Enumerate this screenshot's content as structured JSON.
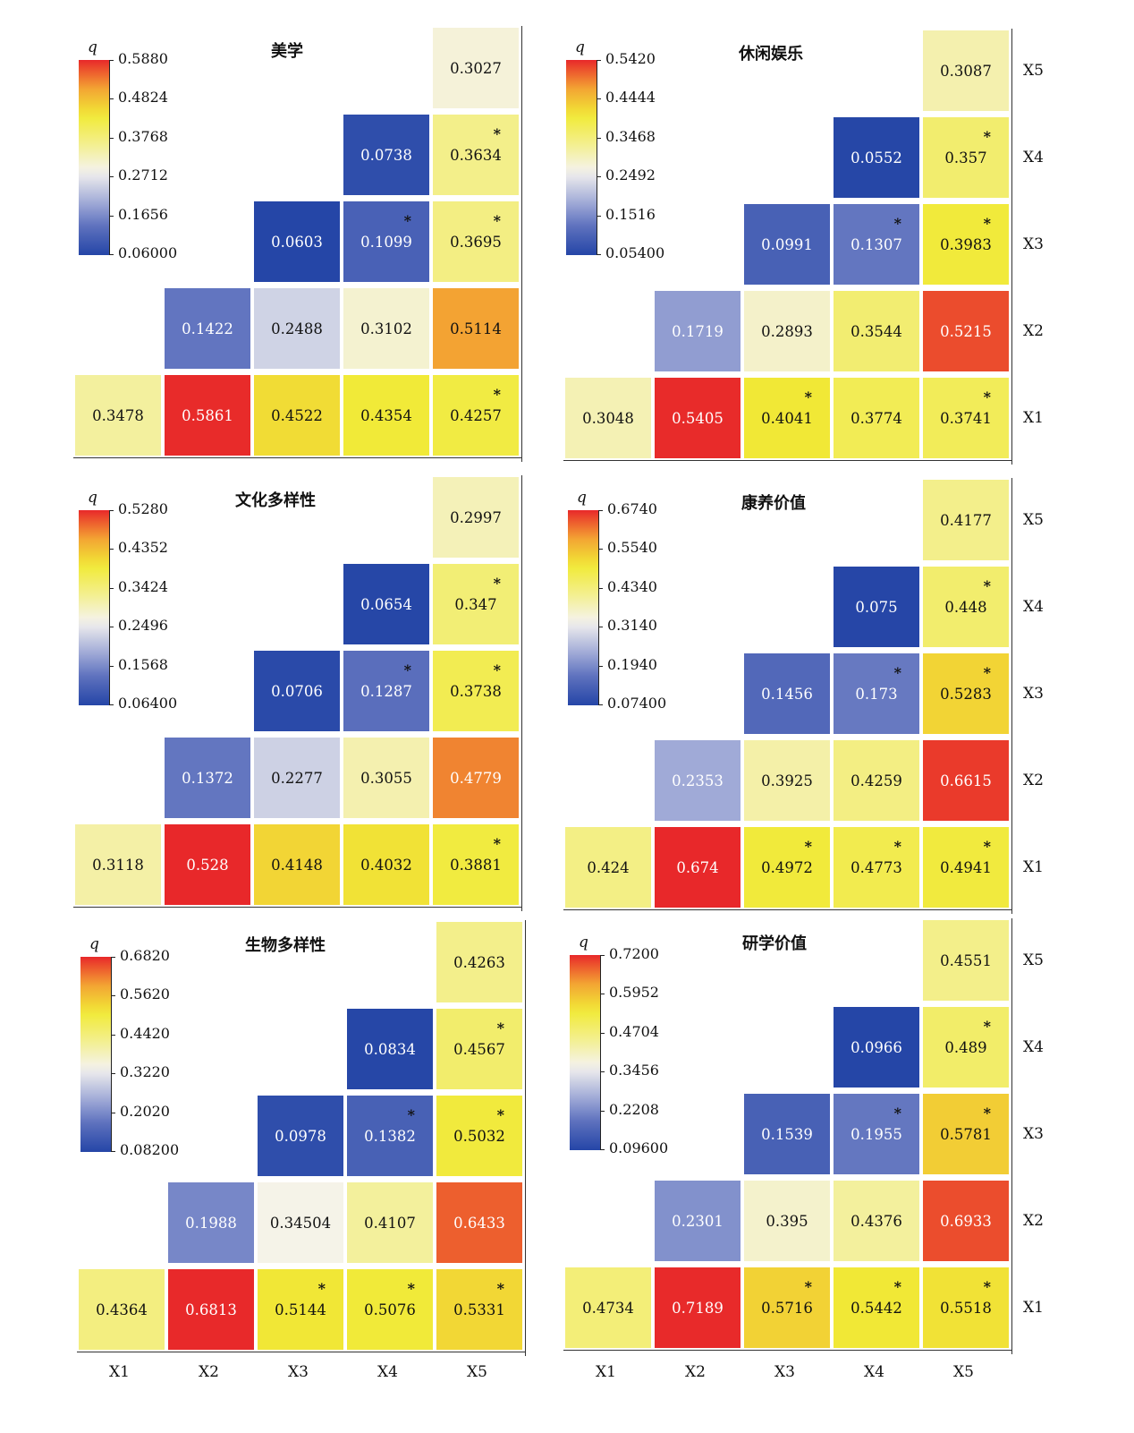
{
  "colorbar_label": "q",
  "axis_labels": [
    "X1",
    "X2",
    "X3",
    "X4",
    "X5"
  ],
  "colormap": [
    "#2546a7",
    "#5b6fbd",
    "#a9b2da",
    "#f5f3ef",
    "#f3ef8c",
    "#f1ea36",
    "#f3a233",
    "#e8282a"
  ],
  "chart_data": [
    {
      "type": "heatmap",
      "title": "美学",
      "range": [
        0.06,
        0.588
      ],
      "colorbar_ticks": [
        "0.5880",
        "0.4824",
        "0.3768",
        "0.2712",
        "0.1656",
        "0.06000"
      ],
      "cells": [
        {
          "row": "X1",
          "col": "X1",
          "value": 0.3478,
          "label": "0.3478",
          "star": false
        },
        {
          "row": "X1",
          "col": "X2",
          "value": 0.5861,
          "label": "0.5861",
          "star": false
        },
        {
          "row": "X1",
          "col": "X3",
          "value": 0.4522,
          "label": "0.4522",
          "star": false
        },
        {
          "row": "X1",
          "col": "X4",
          "value": 0.4354,
          "label": "0.4354",
          "star": false
        },
        {
          "row": "X1",
          "col": "X5",
          "value": 0.4257,
          "label": "0.4257",
          "star": true
        },
        {
          "row": "X2",
          "col": "X2",
          "value": 0.1422,
          "label": "0.1422",
          "star": false
        },
        {
          "row": "X2",
          "col": "X3",
          "value": 0.2488,
          "label": "0.2488",
          "star": false
        },
        {
          "row": "X2",
          "col": "X4",
          "value": 0.3102,
          "label": "0.3102",
          "star": false
        },
        {
          "row": "X2",
          "col": "X5",
          "value": 0.5114,
          "label": "0.5114",
          "star": false
        },
        {
          "row": "X3",
          "col": "X3",
          "value": 0.0603,
          "label": "0.0603",
          "star": false
        },
        {
          "row": "X3",
          "col": "X4",
          "value": 0.1099,
          "label": "0.1099",
          "star": true
        },
        {
          "row": "X3",
          "col": "X5",
          "value": 0.3695,
          "label": "0.3695",
          "star": true
        },
        {
          "row": "X4",
          "col": "X4",
          "value": 0.0738,
          "label": "0.0738",
          "star": false
        },
        {
          "row": "X4",
          "col": "X5",
          "value": 0.3634,
          "label": "0.3634",
          "star": true
        },
        {
          "row": "X5",
          "col": "X5",
          "value": 0.3027,
          "label": "0.3027",
          "star": false
        }
      ]
    },
    {
      "type": "heatmap",
      "title": "休闲娱乐",
      "range": [
        0.054,
        0.542
      ],
      "colorbar_ticks": [
        "0.5420",
        "0.4444",
        "0.3468",
        "0.2492",
        "0.1516",
        "0.05400"
      ],
      "cells": [
        {
          "row": "X1",
          "col": "X1",
          "value": 0.3048,
          "label": "0.3048",
          "star": false
        },
        {
          "row": "X1",
          "col": "X2",
          "value": 0.5405,
          "label": "0.5405",
          "star": false
        },
        {
          "row": "X1",
          "col": "X3",
          "value": 0.4041,
          "label": "0.4041",
          "star": true
        },
        {
          "row": "X1",
          "col": "X4",
          "value": 0.3774,
          "label": "0.3774",
          "star": false
        },
        {
          "row": "X1",
          "col": "X5",
          "value": 0.3741,
          "label": "0.3741",
          "star": true
        },
        {
          "row": "X2",
          "col": "X2",
          "value": 0.1719,
          "label": "0.1719",
          "star": false
        },
        {
          "row": "X2",
          "col": "X3",
          "value": 0.2893,
          "label": "0.2893",
          "star": false
        },
        {
          "row": "X2",
          "col": "X4",
          "value": 0.3544,
          "label": "0.3544",
          "star": false
        },
        {
          "row": "X2",
          "col": "X5",
          "value": 0.5215,
          "label": "0.5215",
          "star": false
        },
        {
          "row": "X3",
          "col": "X3",
          "value": 0.0991,
          "label": "0.0991",
          "star": false
        },
        {
          "row": "X3",
          "col": "X4",
          "value": 0.1307,
          "label": "0.1307",
          "star": true
        },
        {
          "row": "X3",
          "col": "X5",
          "value": 0.3983,
          "label": "0.3983",
          "star": true
        },
        {
          "row": "X4",
          "col": "X4",
          "value": 0.0552,
          "label": "0.0552",
          "star": false
        },
        {
          "row": "X4",
          "col": "X5",
          "value": 0.357,
          "label": "0.357",
          "star": true
        },
        {
          "row": "X5",
          "col": "X5",
          "value": 0.3087,
          "label": "0.3087",
          "star": false
        }
      ]
    },
    {
      "type": "heatmap",
      "title": "文化多样性",
      "range": [
        0.064,
        0.528
      ],
      "colorbar_ticks": [
        "0.5280",
        "0.4352",
        "0.3424",
        "0.2496",
        "0.1568",
        "0.06400"
      ],
      "cells": [
        {
          "row": "X1",
          "col": "X1",
          "value": 0.3118,
          "label": "0.3118",
          "star": false
        },
        {
          "row": "X1",
          "col": "X2",
          "value": 0.528,
          "label": "0.528",
          "star": false
        },
        {
          "row": "X1",
          "col": "X3",
          "value": 0.4148,
          "label": "0.4148",
          "star": false
        },
        {
          "row": "X1",
          "col": "X4",
          "value": 0.4032,
          "label": "0.4032",
          "star": false
        },
        {
          "row": "X1",
          "col": "X5",
          "value": 0.3881,
          "label": "0.3881",
          "star": true
        },
        {
          "row": "X2",
          "col": "X2",
          "value": 0.1372,
          "label": "0.1372",
          "star": false
        },
        {
          "row": "X2",
          "col": "X3",
          "value": 0.2277,
          "label": "0.2277",
          "star": false
        },
        {
          "row": "X2",
          "col": "X4",
          "value": 0.3055,
          "label": "0.3055",
          "star": false
        },
        {
          "row": "X2",
          "col": "X5",
          "value": 0.4779,
          "label": "0.4779",
          "star": false
        },
        {
          "row": "X3",
          "col": "X3",
          "value": 0.0706,
          "label": "0.0706",
          "star": false
        },
        {
          "row": "X3",
          "col": "X4",
          "value": 0.1287,
          "label": "0.1287",
          "star": true
        },
        {
          "row": "X3",
          "col": "X5",
          "value": 0.3738,
          "label": "0.3738",
          "star": true
        },
        {
          "row": "X4",
          "col": "X4",
          "value": 0.0654,
          "label": "0.0654",
          "star": false
        },
        {
          "row": "X4",
          "col": "X5",
          "value": 0.347,
          "label": "0.347",
          "star": true
        },
        {
          "row": "X5",
          "col": "X5",
          "value": 0.2997,
          "label": "0.2997",
          "star": false
        }
      ]
    },
    {
      "type": "heatmap",
      "title": "康养价值",
      "range": [
        0.074,
        0.674
      ],
      "colorbar_ticks": [
        "0.6740",
        "0.5540",
        "0.4340",
        "0.3140",
        "0.1940",
        "0.07400"
      ],
      "cells": [
        {
          "row": "X1",
          "col": "X1",
          "value": 0.424,
          "label": "0.424",
          "star": false
        },
        {
          "row": "X1",
          "col": "X2",
          "value": 0.674,
          "label": "0.674",
          "star": false
        },
        {
          "row": "X1",
          "col": "X3",
          "value": 0.4972,
          "label": "0.4972",
          "star": true
        },
        {
          "row": "X1",
          "col": "X4",
          "value": 0.4773,
          "label": "0.4773",
          "star": true
        },
        {
          "row": "X1",
          "col": "X5",
          "value": 0.4941,
          "label": "0.4941",
          "star": true
        },
        {
          "row": "X2",
          "col": "X2",
          "value": 0.2353,
          "label": "0.2353",
          "star": false
        },
        {
          "row": "X2",
          "col": "X3",
          "value": 0.3925,
          "label": "0.3925",
          "star": false
        },
        {
          "row": "X2",
          "col": "X4",
          "value": 0.4259,
          "label": "0.4259",
          "star": false
        },
        {
          "row": "X2",
          "col": "X5",
          "value": 0.6615,
          "label": "0.6615",
          "star": false
        },
        {
          "row": "X3",
          "col": "X3",
          "value": 0.1456,
          "label": "0.1456",
          "star": false
        },
        {
          "row": "X3",
          "col": "X4",
          "value": 0.173,
          "label": "0.173",
          "star": true
        },
        {
          "row": "X3",
          "col": "X5",
          "value": 0.5283,
          "label": "0.5283",
          "star": true
        },
        {
          "row": "X4",
          "col": "X4",
          "value": 0.075,
          "label": "0.075",
          "star": false
        },
        {
          "row": "X4",
          "col": "X5",
          "value": 0.448,
          "label": "0.448",
          "star": true
        },
        {
          "row": "X5",
          "col": "X5",
          "value": 0.4177,
          "label": "0.4177",
          "star": false
        }
      ]
    },
    {
      "type": "heatmap",
      "title": "生物多样性",
      "range": [
        0.082,
        0.682
      ],
      "colorbar_ticks": [
        "0.6820",
        "0.5620",
        "0.4420",
        "0.3220",
        "0.2020",
        "0.08200"
      ],
      "cells": [
        {
          "row": "X1",
          "col": "X1",
          "value": 0.4364,
          "label": "0.4364",
          "star": false
        },
        {
          "row": "X1",
          "col": "X2",
          "value": 0.6813,
          "label": "0.6813",
          "star": false
        },
        {
          "row": "X1",
          "col": "X3",
          "value": 0.5144,
          "label": "0.5144",
          "star": true
        },
        {
          "row": "X1",
          "col": "X4",
          "value": 0.5076,
          "label": "0.5076",
          "star": true
        },
        {
          "row": "X1",
          "col": "X5",
          "value": 0.5331,
          "label": "0.5331",
          "star": true
        },
        {
          "row": "X2",
          "col": "X2",
          "value": 0.1988,
          "label": "0.1988",
          "star": false
        },
        {
          "row": "X2",
          "col": "X3",
          "value": 0.34504,
          "label": "0.34504",
          "star": false
        },
        {
          "row": "X2",
          "col": "X4",
          "value": 0.4107,
          "label": "0.4107",
          "star": false
        },
        {
          "row": "X2",
          "col": "X5",
          "value": 0.6433,
          "label": "0.6433",
          "star": false
        },
        {
          "row": "X3",
          "col": "X3",
          "value": 0.0978,
          "label": "0.0978",
          "star": false
        },
        {
          "row": "X3",
          "col": "X4",
          "value": 0.1382,
          "label": "0.1382",
          "star": true
        },
        {
          "row": "X3",
          "col": "X5",
          "value": 0.5032,
          "label": "0.5032",
          "star": true
        },
        {
          "row": "X4",
          "col": "X4",
          "value": 0.0834,
          "label": "0.0834",
          "star": false
        },
        {
          "row": "X4",
          "col": "X5",
          "value": 0.4567,
          "label": "0.4567",
          "star": true
        },
        {
          "row": "X5",
          "col": "X5",
          "value": 0.4263,
          "label": "0.4263",
          "star": false
        }
      ]
    },
    {
      "type": "heatmap",
      "title": "研学价值",
      "range": [
        0.096,
        0.72
      ],
      "colorbar_ticks": [
        "0.7200",
        "0.5952",
        "0.4704",
        "0.3456",
        "0.2208",
        "0.09600"
      ],
      "cells": [
        {
          "row": "X1",
          "col": "X1",
          "value": 0.4734,
          "label": "0.4734",
          "star": false
        },
        {
          "row": "X1",
          "col": "X2",
          "value": 0.7189,
          "label": "0.7189",
          "star": false
        },
        {
          "row": "X1",
          "col": "X3",
          "value": 0.5716,
          "label": "0.5716",
          "star": true
        },
        {
          "row": "X1",
          "col": "X4",
          "value": 0.5442,
          "label": "0.5442",
          "star": true
        },
        {
          "row": "X1",
          "col": "X5",
          "value": 0.5518,
          "label": "0.5518",
          "star": true
        },
        {
          "row": "X2",
          "col": "X2",
          "value": 0.2301,
          "label": "0.2301",
          "star": false
        },
        {
          "row": "X2",
          "col": "X3",
          "value": 0.395,
          "label": "0.395",
          "star": false
        },
        {
          "row": "X2",
          "col": "X4",
          "value": 0.4376,
          "label": "0.4376",
          "star": false
        },
        {
          "row": "X2",
          "col": "X5",
          "value": 0.6933,
          "label": "0.6933",
          "star": false
        },
        {
          "row": "X3",
          "col": "X3",
          "value": 0.1539,
          "label": "0.1539",
          "star": false
        },
        {
          "row": "X3",
          "col": "X4",
          "value": 0.1955,
          "label": "0.1955",
          "star": true
        },
        {
          "row": "X3",
          "col": "X5",
          "value": 0.5781,
          "label": "0.5781",
          "star": true
        },
        {
          "row": "X4",
          "col": "X4",
          "value": 0.0966,
          "label": "0.0966",
          "star": false
        },
        {
          "row": "X4",
          "col": "X5",
          "value": 0.489,
          "label": "0.489",
          "star": true
        },
        {
          "row": "X5",
          "col": "X5",
          "value": 0.4551,
          "label": "0.4551",
          "star": false
        }
      ]
    }
  ]
}
